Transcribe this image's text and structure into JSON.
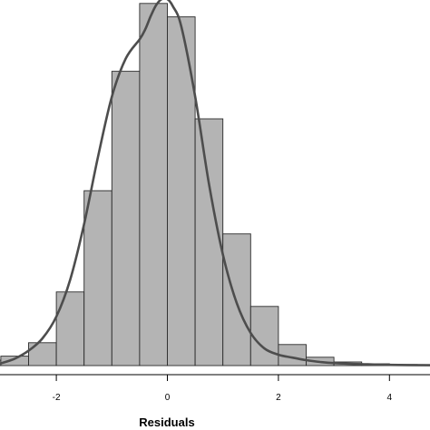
{
  "chart_data": {
    "type": "bar",
    "subtype": "histogram-with-density-curve",
    "xlabel": "Residuals",
    "ylabel": "",
    "title": "",
    "xlim": [
      -3.0,
      4.75
    ],
    "ylim": [
      0,
      1.0
    ],
    "xticks": [
      -2,
      0,
      2,
      4
    ],
    "x_tick_labels": [
      "-2",
      "0",
      "2",
      "4"
    ],
    "grid": false,
    "legend": "none",
    "bin_width": 0.5,
    "bins": [
      {
        "x0": -3.5,
        "x1": -3.0,
        "value": 0.015
      },
      {
        "x0": -3.0,
        "x1": -2.5,
        "value": 0.026
      },
      {
        "x0": -2.5,
        "x1": -2.0,
        "value": 0.063
      },
      {
        "x0": -2.0,
        "x1": -1.5,
        "value": 0.203
      },
      {
        "x0": -1.5,
        "x1": -1.0,
        "value": 0.482
      },
      {
        "x0": -1.0,
        "x1": -0.5,
        "value": 0.811
      },
      {
        "x0": -0.5,
        "x1": 0.0,
        "value": 0.998
      },
      {
        "x0": 0.0,
        "x1": 0.5,
        "value": 0.961
      },
      {
        "x0": 0.5,
        "x1": 1.0,
        "value": 0.68
      },
      {
        "x0": 1.0,
        "x1": 1.5,
        "value": 0.363
      },
      {
        "x0": 1.5,
        "x1": 2.0,
        "value": 0.163
      },
      {
        "x0": 2.0,
        "x1": 2.5,
        "value": 0.058
      },
      {
        "x0": 2.5,
        "x1": 3.0,
        "value": 0.023
      },
      {
        "x0": 3.0,
        "x1": 3.5,
        "value": 0.01
      },
      {
        "x0": 3.5,
        "x1": 4.0,
        "value": 0.005
      },
      {
        "x0": 4.0,
        "x1": 4.5,
        "value": 0.003
      },
      {
        "x0": 4.5,
        "x1": 5.0,
        "value": 0.002
      }
    ],
    "density_curve": {
      "x": [
        -3.0,
        -2.75,
        -2.5,
        -2.25,
        -2.0,
        -1.75,
        -1.5,
        -1.25,
        -1.0,
        -0.75,
        -0.5,
        -0.4,
        -0.3,
        -0.2,
        -0.1,
        0.0,
        0.1,
        0.25,
        0.5,
        0.75,
        1.0,
        1.25,
        1.5,
        1.75,
        2.0,
        2.25,
        2.5,
        2.75,
        3.0,
        3.5,
        4.0,
        4.75
      ],
      "y": [
        0.006,
        0.019,
        0.041,
        0.075,
        0.135,
        0.237,
        0.39,
        0.575,
        0.741,
        0.846,
        0.899,
        0.926,
        0.963,
        0.994,
        1.01,
        1.01,
        0.99,
        0.935,
        0.742,
        0.5,
        0.306,
        0.172,
        0.09,
        0.047,
        0.03,
        0.022,
        0.015,
        0.01,
        0.007,
        0.004,
        0.002,
        0.001
      ]
    },
    "colors": {
      "bar_fill": "#b4b4b4",
      "bar_stroke": "#2a2a2a",
      "curve": "#4d4d4d",
      "axis": "#000000"
    }
  }
}
